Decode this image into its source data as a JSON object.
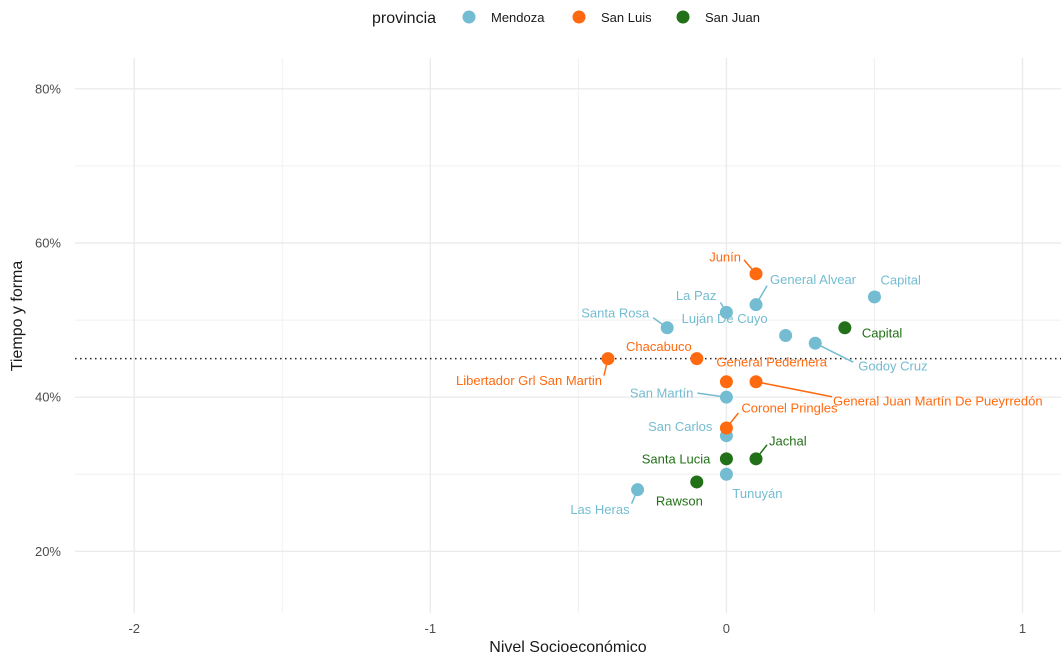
{
  "chart_data": {
    "type": "scatter",
    "xlabel": "Nivel Socioeconómico",
    "ylabel": "Tiempo y forma",
    "xlim": [
      -2.2,
      1.13
    ],
    "ylim": [
      0.12,
      0.84
    ],
    "x_ticks": [
      -2,
      -1,
      0,
      1
    ],
    "x_tick_labels": [
      "-2",
      "-1",
      "0",
      "1"
    ],
    "y_ticks": [
      0.2,
      0.4,
      0.6,
      0.8
    ],
    "y_tick_labels": [
      "20%",
      "40%",
      "60%",
      "80%"
    ],
    "reference_line": {
      "y": 0.45,
      "style": "dotted"
    },
    "grid": true,
    "legend": {
      "title": "provincia",
      "position": "top",
      "entries": [
        {
          "name": "Mendoza",
          "color": "#74bcd1"
        },
        {
          "name": "San Luis",
          "color": "#ff6a10"
        },
        {
          "name": "San Juan",
          "color": "#227017"
        }
      ]
    },
    "series": [
      {
        "name": "Mendoza",
        "color": "#74bcd1",
        "points": [
          {
            "label": "Capital",
            "x": 0.5,
            "y": 0.53
          },
          {
            "label": "General Alvear",
            "x": 0.1,
            "y": 0.52
          },
          {
            "label": "La Paz",
            "x": 0.0,
            "y": 0.51
          },
          {
            "label": "Santa Rosa",
            "x": -0.2,
            "y": 0.49
          },
          {
            "label": "Luján De Cuyo",
            "x": 0.2,
            "y": 0.48
          },
          {
            "label": "Godoy Cruz",
            "x": 0.3,
            "y": 0.47
          },
          {
            "label": "San Martín",
            "x": 0.0,
            "y": 0.4
          },
          {
            "label": "San Carlos",
            "x": 0.0,
            "y": 0.35
          },
          {
            "label": "Tunuyán",
            "x": 0.0,
            "y": 0.3
          },
          {
            "label": "Las Heras",
            "x": -0.3,
            "y": 0.28
          }
        ]
      },
      {
        "name": "San Luis",
        "color": "#ff6a10",
        "points": [
          {
            "label": "Junín",
            "x": 0.1,
            "y": 0.56
          },
          {
            "label": "Chacabuco",
            "x": -0.1,
            "y": 0.45
          },
          {
            "label": "Libertador Grl San Martin",
            "x": -0.4,
            "y": 0.45
          },
          {
            "label": "General Pedernera",
            "x": 0.0,
            "y": 0.42
          },
          {
            "label": "General Juan Martín De Pueyrredón",
            "x": 0.1,
            "y": 0.42
          },
          {
            "label": "Coronel Pringles",
            "x": 0.0,
            "y": 0.36
          }
        ]
      },
      {
        "name": "San Juan",
        "color": "#227017",
        "points": [
          {
            "label": "Capital",
            "x": 0.4,
            "y": 0.49
          },
          {
            "label": "Jachal",
            "x": 0.1,
            "y": 0.32
          },
          {
            "label": "Santa Lucia",
            "x": 0.0,
            "y": 0.32
          },
          {
            "label": "Rawson",
            "x": -0.1,
            "y": 0.29
          }
        ]
      }
    ]
  }
}
